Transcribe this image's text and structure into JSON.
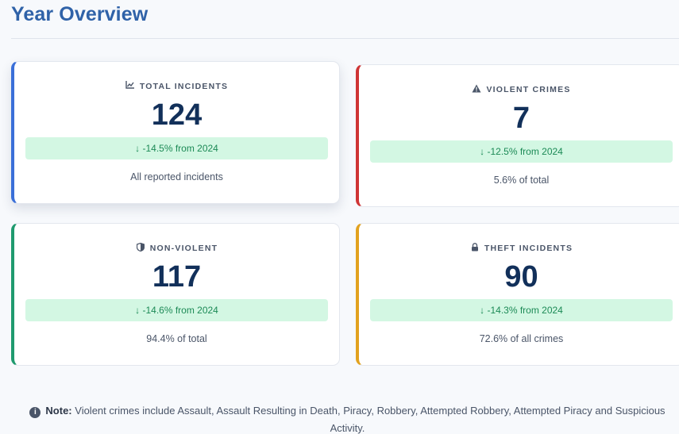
{
  "page": {
    "title": "Year Overview"
  },
  "cards": [
    {
      "icon": "chart-line-icon",
      "glyph": "📈",
      "label": "TOTAL INCIDENTS",
      "value": "124",
      "change": "↓ -14.5% from 2024",
      "sub": "All reported incidents",
      "accent": "#3a6fd8"
    },
    {
      "icon": "warning-icon",
      "glyph": "⚠",
      "label": "VIOLENT CRIMES",
      "value": "7",
      "change": "↓ -12.5% from 2024",
      "sub": "5.6% of total",
      "accent": "#cf3535"
    },
    {
      "icon": "shield-icon",
      "glyph": "◐",
      "label": "NON-VIOLENT",
      "value": "117",
      "change": "↓ -14.6% from 2024",
      "sub": "94.4% of total",
      "accent": "#1f9a6e"
    },
    {
      "icon": "lock-icon",
      "glyph": "🔒",
      "label": "THEFT INCIDENTS",
      "value": "90",
      "change": "↓ -14.3% from 2024",
      "sub": "72.6% of all crimes",
      "accent": "#e2a21f"
    }
  ],
  "note": {
    "icon": "info-icon",
    "prefix": "Note:",
    "text": " Violent crimes include Assault, Assault Resulting in Death, Piracy, Robbery, Attempted Robbery, Attempted Piracy and Suspicious Activity."
  },
  "colors": {
    "title": "#2f62a8",
    "value": "#12305a",
    "change_bg": "#d3f7e3",
    "change_text": "#1c8a56"
  }
}
